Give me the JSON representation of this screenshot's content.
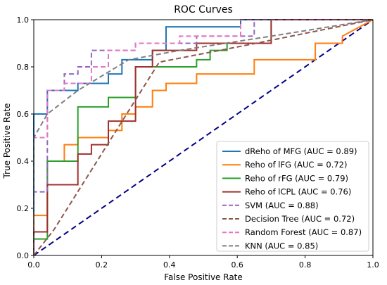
{
  "chart_data": {
    "type": "line",
    "title": "ROC Curves",
    "xlabel": "False Positive Rate",
    "ylabel": "True Positive Rate",
    "xlim": [
      0,
      1
    ],
    "ylim": [
      0,
      1
    ],
    "xticks": [
      "0.0",
      "0.2",
      "0.4",
      "0.6",
      "0.8",
      "1.0"
    ],
    "yticks": [
      "0.0",
      "0.2",
      "0.4",
      "0.6",
      "0.8",
      "1.0"
    ],
    "grid": false,
    "legend_position": "bottom-right",
    "chance_line": {
      "x": [
        0,
        1
      ],
      "y": [
        0,
        1
      ],
      "color": "#00008b",
      "dash": "dashed"
    },
    "series": [
      {
        "name": "dReho of MFG (AUC = 0.89)",
        "color": "#1f77b4",
        "style": "solid",
        "x": [
          0,
          0,
          0.04,
          0.04,
          0.13,
          0.13,
          0.22,
          0.22,
          0.26,
          0.26,
          0.35,
          0.35,
          0.39,
          0.39,
          0.61,
          0.61,
          1
        ],
        "y": [
          0,
          0.6,
          0.6,
          0.7,
          0.7,
          0.73,
          0.73,
          0.77,
          0.77,
          0.83,
          0.83,
          0.87,
          0.87,
          0.97,
          0.97,
          1,
          1
        ]
      },
      {
        "name": "Reho of lFG (AUC = 0.72)",
        "color": "#ff7f0e",
        "style": "solid",
        "x": [
          0,
          0,
          0.04,
          0.04,
          0.09,
          0.09,
          0.13,
          0.13,
          0.22,
          0.22,
          0.26,
          0.26,
          0.3,
          0.3,
          0.35,
          0.35,
          0.39,
          0.39,
          0.48,
          0.48,
          0.65,
          0.65,
          0.83,
          0.83,
          0.91,
          0.91,
          1
        ],
        "y": [
          0,
          0.17,
          0.17,
          0.4,
          0.4,
          0.47,
          0.47,
          0.5,
          0.5,
          0.53,
          0.53,
          0.6,
          0.6,
          0.63,
          0.63,
          0.7,
          0.7,
          0.73,
          0.73,
          0.77,
          0.77,
          0.83,
          0.83,
          0.9,
          0.9,
          0.93,
          1
        ]
      },
      {
        "name": "Reho of rFG (AUC = 0.79)",
        "color": "#2ca02c",
        "style": "solid",
        "x": [
          0,
          0,
          0.04,
          0.04,
          0.13,
          0.13,
          0.22,
          0.22,
          0.3,
          0.3,
          0.48,
          0.48,
          0.52,
          0.52,
          0.57,
          0.57,
          0.7,
          0.7,
          1
        ],
        "y": [
          0,
          0.07,
          0.07,
          0.4,
          0.4,
          0.63,
          0.63,
          0.67,
          0.67,
          0.8,
          0.8,
          0.83,
          0.83,
          0.87,
          0.87,
          0.9,
          0.9,
          1,
          1
        ]
      },
      {
        "name": "Reho of lCPL (AUC = 0.76)",
        "color": "#a0312e",
        "style": "solid",
        "x": [
          0,
          0,
          0.04,
          0.04,
          0.13,
          0.13,
          0.17,
          0.17,
          0.22,
          0.22,
          0.3,
          0.3,
          0.35,
          0.35,
          0.48,
          0.48,
          0.7,
          0.7,
          1
        ],
        "y": [
          0,
          0.1,
          0.1,
          0.3,
          0.3,
          0.43,
          0.43,
          0.47,
          0.47,
          0.57,
          0.57,
          0.8,
          0.8,
          0.87,
          0.87,
          0.9,
          0.9,
          1,
          1
        ]
      },
      {
        "name": "SVM (AUC = 0.88)",
        "color": "#9467bd",
        "style": "dashed",
        "x": [
          0,
          0,
          0.04,
          0.04,
          0.09,
          0.09,
          0.13,
          0.13,
          0.17,
          0.17,
          0.3,
          0.3,
          0.48,
          0.48,
          0.65,
          0.65,
          1
        ],
        "y": [
          0,
          0.27,
          0.27,
          0.7,
          0.7,
          0.77,
          0.77,
          0.8,
          0.8,
          0.87,
          0.87,
          0.9,
          0.9,
          0.93,
          0.93,
          1,
          1
        ]
      },
      {
        "name": "Decision Tree (AUC = 0.72)",
        "color": "#8c564b",
        "style": "dashed",
        "x": [
          0,
          0.06,
          0.37,
          0.62,
          1
        ],
        "y": [
          0,
          0.11,
          0.82,
          0.89,
          1
        ]
      },
      {
        "name": "Random Forest (AUC = 0.87)",
        "color": "#e377c2",
        "style": "dashed",
        "x": [
          0,
          0,
          0.04,
          0.04,
          0.09,
          0.09,
          0.17,
          0.17,
          0.22,
          0.22,
          0.3,
          0.3,
          0.43,
          0.43,
          0.61,
          0.61,
          1
        ],
        "y": [
          0,
          0.5,
          0.5,
          0.7,
          0.7,
          0.73,
          0.73,
          0.8,
          0.8,
          0.87,
          0.87,
          0.9,
          0.9,
          0.93,
          0.93,
          1,
          1
        ]
      },
      {
        "name": "KNN (AUC = 0.85)",
        "color": "#7f7f7f",
        "style": "dashed",
        "x": [
          0,
          0,
          0.04,
          0.13,
          0.28,
          0.43,
          0.7,
          1
        ],
        "y": [
          0,
          0.5,
          0.6,
          0.7,
          0.83,
          0.87,
          0.93,
          1
        ]
      }
    ]
  }
}
